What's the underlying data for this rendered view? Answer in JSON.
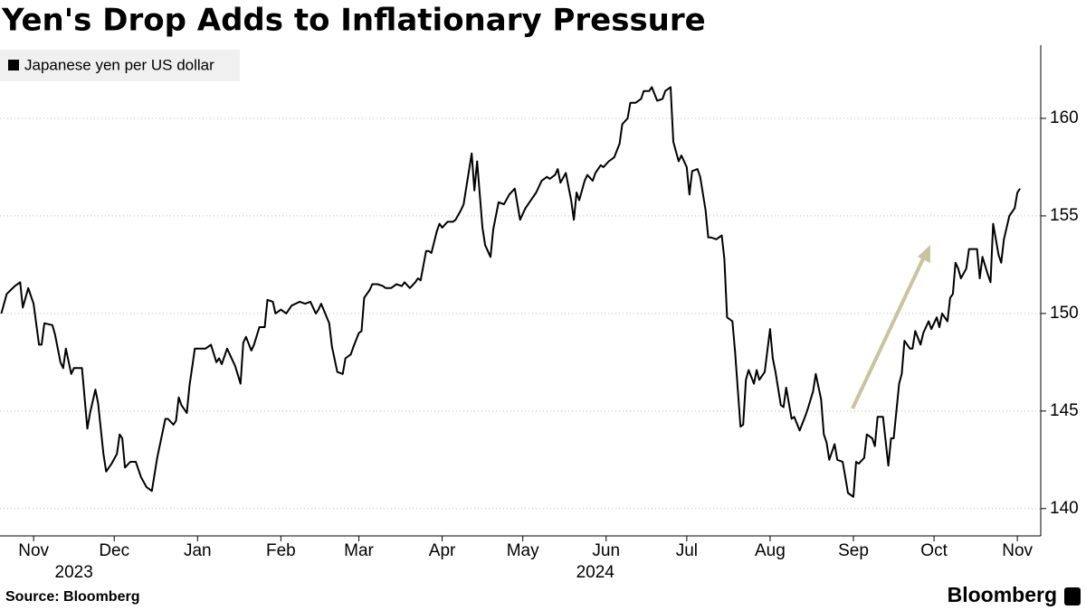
{
  "chart_data": {
    "type": "line",
    "title": "Yen's Drop Adds to Inflationary Pressure",
    "source": "Source: Bloomberg",
    "brand": "Bloomberg",
    "x": [
      -12,
      -10,
      -7,
      -5,
      -4,
      -2,
      0,
      2,
      3,
      4,
      7,
      8,
      10,
      11,
      12,
      14,
      15,
      18,
      20,
      21,
      23,
      24,
      26,
      27,
      29,
      31,
      32,
      33,
      34,
      36,
      38,
      40,
      42,
      44,
      46,
      49,
      50,
      52,
      53,
      54,
      55,
      57,
      58,
      60,
      62,
      64,
      66,
      68,
      69,
      70,
      72,
      73,
      75,
      77,
      78,
      79,
      81,
      82,
      84,
      86,
      87,
      89,
      90,
      92,
      94,
      96,
      99,
      101,
      103,
      105,
      106,
      107,
      110,
      111,
      113,
      115,
      116,
      118,
      119,
      121,
      122,
      123,
      125,
      126,
      128,
      130,
      131,
      133,
      135,
      137,
      138,
      140,
      142,
      143,
      144,
      146,
      147,
      148,
      150,
      151,
      152,
      154,
      156,
      157,
      159,
      160,
      163,
      164,
      165,
      167,
      168,
      170,
      171,
      173,
      175,
      177,
      179,
      181,
      183,
      185,
      187,
      189,
      191,
      192,
      194,
      195,
      196,
      198,
      200,
      201,
      202,
      203,
      205,
      206,
      208,
      209,
      211,
      212,
      214,
      216,
      218,
      219,
      221,
      222,
      224,
      226,
      227,
      229,
      230,
      232,
      234,
      235,
      237,
      238,
      240,
      241,
      243,
      244,
      245,
      247,
      248,
      250,
      251,
      252,
      254,
      256,
      257,
      258,
      260,
      261,
      263,
      264,
      265,
      266,
      268,
      269,
      270,
      272,
      274,
      275,
      276,
      278,
      279,
      280,
      282,
      283,
      285,
      287,
      288,
      290,
      291,
      293,
      294,
      295,
      296,
      298,
      299,
      301,
      302,
      303,
      305,
      306,
      307,
      309,
      310,
      312,
      313,
      314,
      316,
      318,
      319,
      320,
      322,
      323,
      324,
      326,
      327,
      328,
      330,
      331,
      333,
      334,
      336,
      337,
      338,
      340,
      341,
      342,
      343,
      344,
      345,
      347,
      348,
      350,
      351,
      352,
      353,
      355,
      356,
      357,
      359,
      360,
      361,
      363,
      365,
      366,
      367
    ],
    "series": [
      {
        "name": "Japanese yen per US dollar",
        "color": "#000000",
        "values": [
          150.0,
          151.0,
          151.4,
          151.6,
          150.3,
          151.3,
          150.5,
          148.4,
          148.4,
          149.5,
          149.4,
          148.9,
          147.5,
          147.2,
          148.2,
          146.9,
          147.2,
          147.2,
          144.1,
          144.9,
          146.1,
          145.4,
          142.8,
          141.9,
          142.3,
          142.8,
          143.8,
          143.6,
          142.1,
          142.4,
          142.4,
          141.6,
          141.1,
          140.9,
          142.6,
          144.6,
          144.6,
          144.3,
          144.5,
          145.7,
          145.3,
          144.9,
          146.3,
          148.2,
          148.2,
          148.2,
          148.4,
          147.5,
          147.7,
          147.4,
          148.2,
          147.9,
          147.3,
          146.4,
          148.5,
          148.8,
          148.1,
          148.4,
          149.3,
          149.3,
          150.7,
          150.6,
          150.0,
          150.2,
          150.0,
          150.4,
          150.6,
          150.5,
          150.6,
          150.0,
          150.2,
          150.5,
          149.5,
          148.3,
          147.0,
          146.9,
          147.7,
          147.9,
          148.3,
          149.0,
          149.1,
          150.8,
          151.2,
          151.5,
          151.5,
          151.4,
          151.3,
          151.3,
          151.5,
          151.4,
          151.6,
          151.3,
          151.6,
          151.8,
          151.7,
          153.2,
          153.2,
          153.1,
          154.2,
          154.6,
          154.4,
          154.7,
          154.7,
          154.8,
          155.3,
          155.6,
          158.2,
          156.3,
          157.8,
          154.4,
          153.5,
          152.9,
          154.3,
          155.7,
          155.6,
          156.1,
          156.4,
          154.8,
          155.4,
          155.8,
          156.2,
          156.8,
          157.0,
          156.9,
          157.1,
          157.4,
          156.7,
          157.2,
          155.8,
          154.8,
          156.2,
          155.8,
          156.8,
          157.1,
          156.8,
          157.2,
          157.6,
          157.5,
          157.8,
          158.0,
          158.7,
          159.7,
          160.0,
          160.8,
          160.8,
          161.0,
          161.4,
          161.4,
          161.6,
          160.9,
          161.0,
          161.4,
          161.6,
          158.8,
          157.8,
          158.1,
          157.5,
          156.1,
          157.3,
          157.4,
          157.0,
          155.3,
          153.9,
          153.9,
          153.8,
          154.0,
          152.8,
          149.8,
          149.6,
          148.0,
          144.2,
          144.3,
          146.6,
          147.1,
          146.4,
          147.1,
          146.6,
          147.0,
          149.2,
          147.7,
          147.0,
          145.3,
          145.2,
          146.2,
          144.6,
          144.7,
          144.0,
          144.7,
          145.1,
          146.0,
          146.9,
          145.6,
          143.8,
          143.4,
          142.5,
          143.3,
          142.5,
          142.4,
          141.6,
          140.8,
          140.6,
          142.4,
          142.3,
          142.6,
          143.8,
          143.6,
          143.2,
          144.7,
          144.7,
          142.2,
          143.6,
          143.6,
          146.4,
          146.9,
          148.6,
          148.2,
          148.2,
          149.1,
          148.4,
          149.0,
          149.6,
          149.2,
          149.8,
          149.3,
          150.0,
          149.6,
          150.8,
          151.0,
          152.6,
          152.3,
          151.8,
          152.3,
          153.3,
          153.3,
          153.3,
          151.8,
          152.9,
          152.0,
          151.6,
          154.6,
          153.0,
          152.6,
          153.8,
          155.0,
          155.4,
          156.2,
          156.4
        ]
      }
    ],
    "xlim": [
      -12.5,
      374.7
    ],
    "xticks": [
      {
        "value": 0,
        "label": "Nov"
      },
      {
        "value": 30,
        "label": "Dec"
      },
      {
        "value": 61,
        "label": "Jan"
      },
      {
        "value": 92,
        "label": "Feb"
      },
      {
        "value": 121,
        "label": "Mar"
      },
      {
        "value": 152,
        "label": "Apr"
      },
      {
        "value": 182,
        "label": "May"
      },
      {
        "value": 213,
        "label": "Jun"
      },
      {
        "value": 243,
        "label": "Jul"
      },
      {
        "value": 274,
        "label": "Aug"
      },
      {
        "value": 305,
        "label": "Sep"
      },
      {
        "value": 335,
        "label": "Oct"
      },
      {
        "value": 366,
        "label": "Nov"
      }
    ],
    "years": [
      "2023",
      "2024"
    ],
    "ylim": [
      138.6,
      163.75
    ],
    "yticks": [
      140,
      145,
      150,
      155,
      160
    ],
    "grid": true,
    "legend": "top-left"
  }
}
